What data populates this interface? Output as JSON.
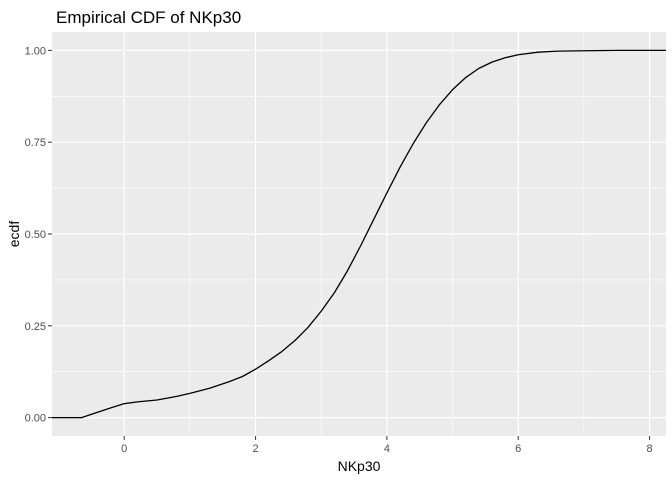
{
  "chart_data": {
    "type": "line",
    "title": "Empirical CDF of NKp30",
    "xlabel": "NKp30",
    "ylabel": "ecdf",
    "xlim": [
      -1.1,
      8.25
    ],
    "ylim": [
      -0.05,
      1.05
    ],
    "x_ticks": [
      0,
      2,
      4,
      6,
      8
    ],
    "y_ticks": [
      0.0,
      0.25,
      0.5,
      0.75,
      1.0
    ],
    "x_tick_labels": [
      "0",
      "2",
      "4",
      "6",
      "8"
    ],
    "y_tick_labels": [
      "0.00",
      "0.25",
      "0.50",
      "0.75",
      "1.00"
    ],
    "grid": true,
    "legend": "none",
    "series": [
      {
        "color": "#000000",
        "x": [
          -1.1,
          -0.65,
          -0.4,
          -0.2,
          0.0,
          0.2,
          0.5,
          0.8,
          1.0,
          1.3,
          1.6,
          1.8,
          2.0,
          2.2,
          2.4,
          2.6,
          2.8,
          3.0,
          3.2,
          3.4,
          3.6,
          3.8,
          4.0,
          4.2,
          4.4,
          4.6,
          4.8,
          5.0,
          5.2,
          5.4,
          5.6,
          5.8,
          6.0,
          6.3,
          6.6,
          7.0,
          7.5,
          8.25
        ],
        "y": [
          0.0,
          0.0,
          0.015,
          0.027,
          0.038,
          0.043,
          0.048,
          0.058,
          0.066,
          0.08,
          0.098,
          0.112,
          0.132,
          0.155,
          0.18,
          0.21,
          0.246,
          0.29,
          0.34,
          0.4,
          0.468,
          0.54,
          0.612,
          0.682,
          0.746,
          0.803,
          0.852,
          0.893,
          0.926,
          0.951,
          0.968,
          0.98,
          0.988,
          0.995,
          0.998,
          0.999,
          1.0,
          1.0
        ]
      }
    ]
  }
}
